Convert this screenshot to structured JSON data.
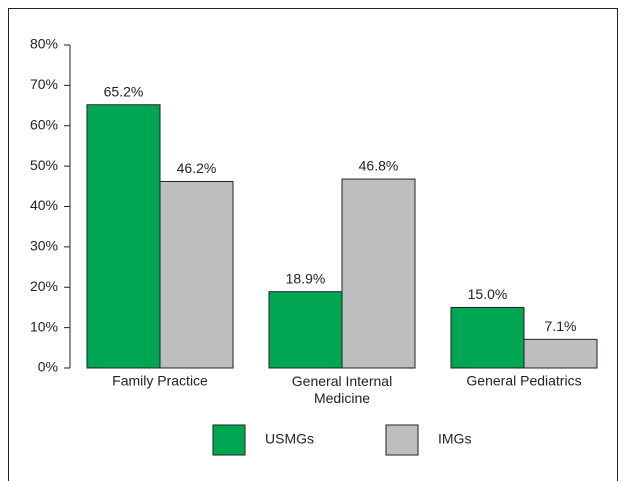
{
  "chart_data": {
    "type": "bar",
    "categories": [
      "Family Practice",
      "General Internal Medicine",
      "General Pediatrics"
    ],
    "series": [
      {
        "name": "USMGs",
        "color": "#00a651",
        "values": [
          65.2,
          18.9,
          15.0
        ],
        "value_labels": [
          "65.2%",
          "18.9%",
          "15.0%"
        ]
      },
      {
        "name": "IMGs",
        "color": "#bcbec0",
        "values": [
          46.2,
          46.8,
          7.1
        ],
        "value_labels": [
          "46.2%",
          "46.8%",
          "7.1%"
        ]
      }
    ],
    "ylim": [
      0,
      80
    ],
    "yticks": [
      {
        "value": 0,
        "label": "0%"
      },
      {
        "value": 10,
        "label": "10%"
      },
      {
        "value": 20,
        "label": "20%"
      },
      {
        "value": 30,
        "label": "30%"
      },
      {
        "value": 40,
        "label": "40%"
      },
      {
        "value": 50,
        "label": "50%"
      },
      {
        "value": 60,
        "label": "60%"
      },
      {
        "value": 70,
        "label": "70%"
      },
      {
        "value": 80,
        "label": "80%"
      }
    ],
    "legend": "bottom"
  }
}
